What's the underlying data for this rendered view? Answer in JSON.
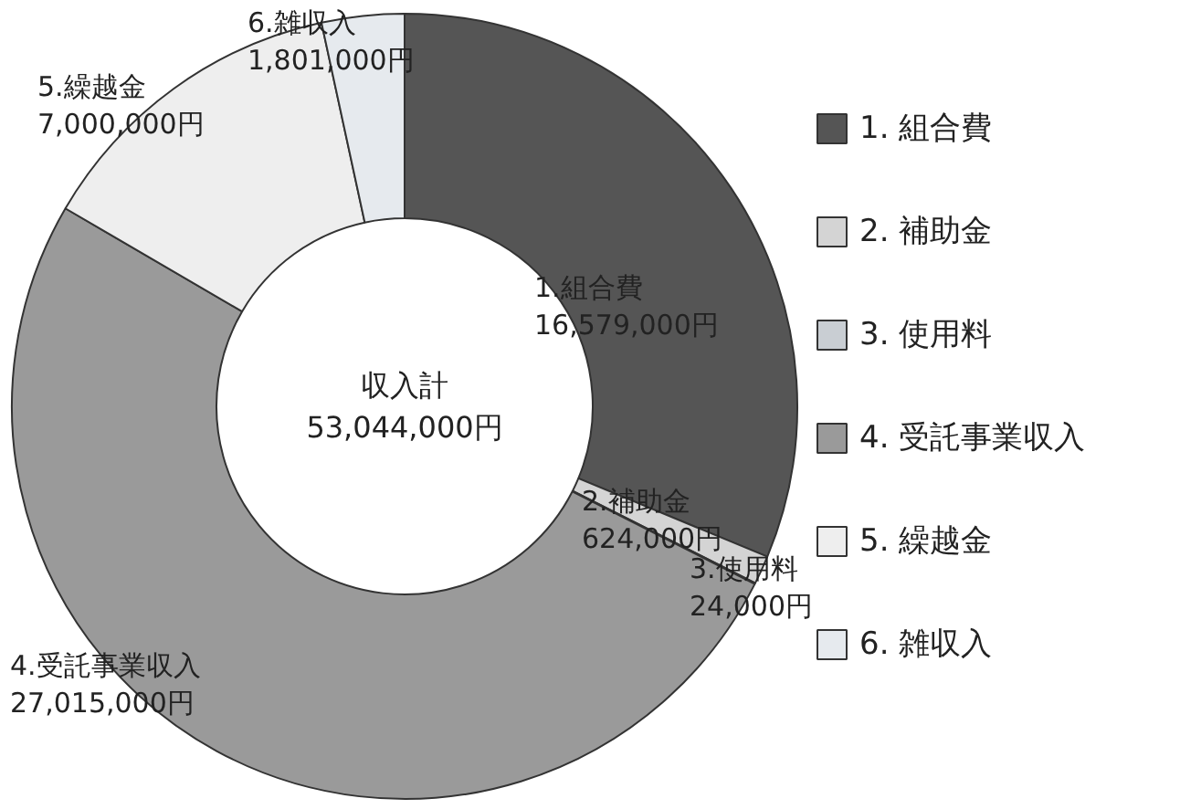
{
  "chart_data": {
    "type": "donut",
    "categories": [
      "1. 組合費",
      "2. 補助金",
      "3. 使用料",
      "4. 受託事業収入",
      "5. 繰越金",
      "6. 雑収入"
    ],
    "values": [
      16579000,
      624000,
      24000,
      27015000,
      7000000,
      1801000
    ],
    "colors": [
      "#555555",
      "#d4d4d4",
      "#c9ced3",
      "#9a9a9a",
      "#eeeeee",
      "#e6eaee"
    ],
    "value_labels": [
      "1.組合費\n16,579,000円",
      "2.補助金\n624,000円",
      "3.使用料\n24,000円",
      "4.受託事業収入\n27,015,000円",
      "5.繰越金\n7,000,000円",
      "6.雑収入\n1,801,000円"
    ],
    "annotations": [
      "収入計\n53,044,000円"
    ],
    "legend": "right"
  }
}
